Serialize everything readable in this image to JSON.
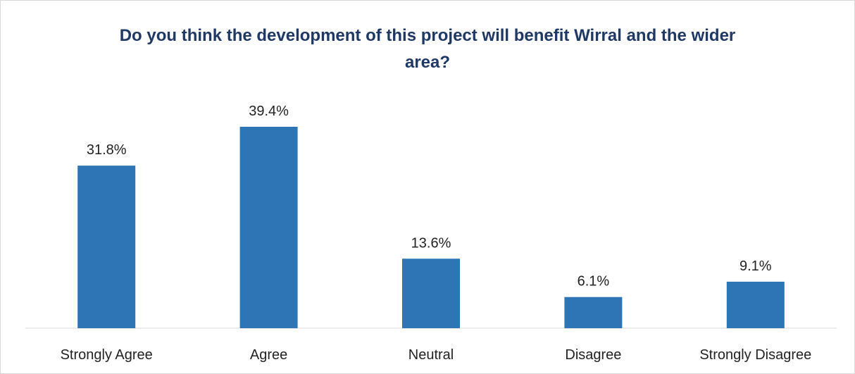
{
  "chart_data": {
    "type": "bar",
    "title": "Do you think the development of this project will benefit Wirral and the wider area?",
    "categories": [
      "Strongly Agree",
      "Agree",
      "Neutral",
      "Disagree",
      "Strongly Disagree"
    ],
    "values": [
      31.8,
      39.4,
      13.6,
      6.1,
      9.1
    ],
    "value_labels": [
      "31.8%",
      "39.4%",
      "13.6%",
      "6.1%",
      "9.1%"
    ],
    "color": "#2e75b6"
  }
}
